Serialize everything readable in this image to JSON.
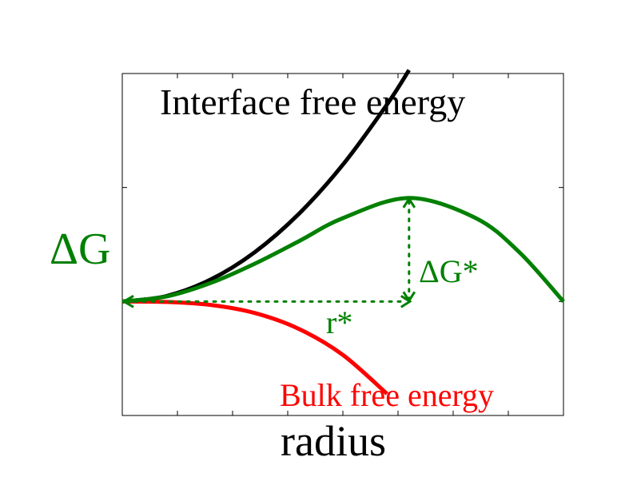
{
  "chart_data": {
    "type": "line",
    "title": "",
    "xlabel": "radius",
    "ylabel": "ΔG",
    "xlim": [
      0,
      1
    ],
    "ylim": [
      -1,
      2
    ],
    "grid": false,
    "legend": "none",
    "series": [
      {
        "name": "Interface free energy",
        "color": "#000000",
        "x": [
          0,
          0.1,
          0.2,
          0.3,
          0.4,
          0.5,
          0.6,
          0.65
        ],
        "y": [
          0,
          0.048,
          0.192,
          0.432,
          0.768,
          1.2,
          1.728,
          2.03
        ]
      },
      {
        "name": "Bulk free energy",
        "color": "#ff0000",
        "x": [
          0,
          0.1,
          0.2,
          0.3,
          0.4,
          0.5,
          0.6
        ],
        "y": [
          0,
          -0.004,
          -0.03,
          -0.101,
          -0.24,
          -0.469,
          -0.81
        ]
      },
      {
        "name": "ΔG",
        "color": "#008000",
        "x": [
          0,
          0.1,
          0.2,
          0.3,
          0.4,
          0.5,
          0.65,
          0.8,
          0.9,
          1.0
        ],
        "y": [
          0,
          0.044,
          0.162,
          0.331,
          0.528,
          0.731,
          0.908,
          0.734,
          0.432,
          0
        ]
      }
    ],
    "annotations": {
      "critical_r_label": "r*",
      "critical_dg_label": "ΔG*",
      "critical_point": {
        "x": 0.65,
        "y": 0.908
      }
    },
    "colors": {
      "interface": "#000000",
      "bulk": "#ff0000",
      "total": "#008000"
    }
  }
}
